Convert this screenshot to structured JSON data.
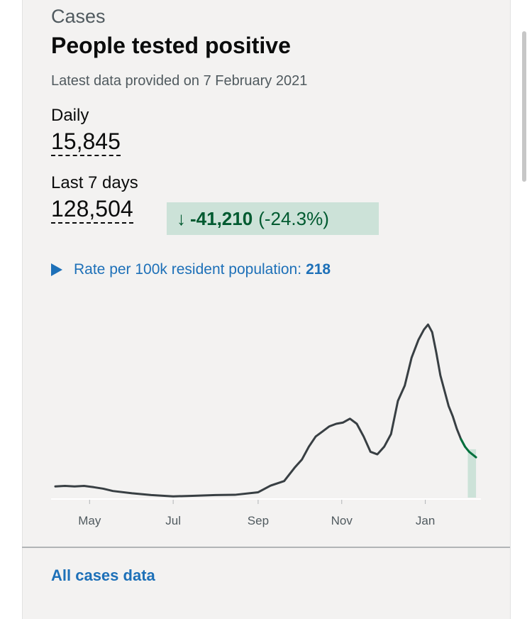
{
  "card": {
    "heading_group": "Cases",
    "title": "People tested positive",
    "updated": "Latest data provided on 7 February 2021"
  },
  "daily": {
    "label": "Daily",
    "value": "15,845"
  },
  "weekly": {
    "label": "Last 7 days",
    "value": "128,504"
  },
  "change": {
    "arrow_icon": "arrow-down-icon",
    "arrow": "↓",
    "value": "-41,210",
    "percent": "(-24.3%)",
    "color": "#005a30",
    "background": "#cce2d8"
  },
  "rate": {
    "toggle_icon": "triangle-right-icon",
    "label": "Rate per 100k resident population:",
    "value": "218"
  },
  "link": {
    "label": "All cases data"
  },
  "chart_data": {
    "type": "line",
    "x_ticks": [
      "May",
      "Jul",
      "Sep",
      "Nov",
      "Jan"
    ],
    "x": [
      "2020-04-06",
      "2020-04-13",
      "2020-04-20",
      "2020-04-27",
      "2020-05-04",
      "2020-05-11",
      "2020-05-18",
      "2020-06-01",
      "2020-06-15",
      "2020-07-01",
      "2020-07-15",
      "2020-08-01",
      "2020-08-15",
      "2020-09-01",
      "2020-09-10",
      "2020-09-20",
      "2020-09-28",
      "2020-10-03",
      "2020-10-08",
      "2020-10-13",
      "2020-10-18",
      "2020-10-23",
      "2020-10-28",
      "2020-11-02",
      "2020-11-07",
      "2020-11-12",
      "2020-11-17",
      "2020-11-22",
      "2020-11-27",
      "2020-12-02",
      "2020-12-07",
      "2020-12-12",
      "2020-12-17",
      "2020-12-22",
      "2020-12-27",
      "2020-12-31",
      "2021-01-03",
      "2021-01-06",
      "2021-01-09",
      "2021-01-12",
      "2021-01-15",
      "2021-01-18",
      "2021-01-21",
      "2021-01-24",
      "2021-01-27",
      "2021-01-30",
      "2021-02-02",
      "2021-02-07"
    ],
    "values": [
      4400,
      4600,
      4400,
      4600,
      4100,
      3500,
      2600,
      1700,
      1000,
      500,
      700,
      1000,
      1100,
      2100,
      4700,
      6500,
      12000,
      15000,
      20000,
      24000,
      26000,
      28000,
      29000,
      29500,
      31000,
      29000,
      24000,
      18000,
      17000,
      20000,
      25000,
      38000,
      44000,
      55000,
      62000,
      66000,
      68000,
      65000,
      57000,
      48000,
      42000,
      36000,
      32000,
      27000,
      23000,
      20000,
      18000,
      15845
    ],
    "series_color": "#383f43",
    "recent_color": "#00703c",
    "recent_from": "2021-01-29",
    "shaded_period": [
      "2021-02-01",
      "2021-02-07"
    ],
    "shade_color": "#cce2d8",
    "grid": false
  }
}
